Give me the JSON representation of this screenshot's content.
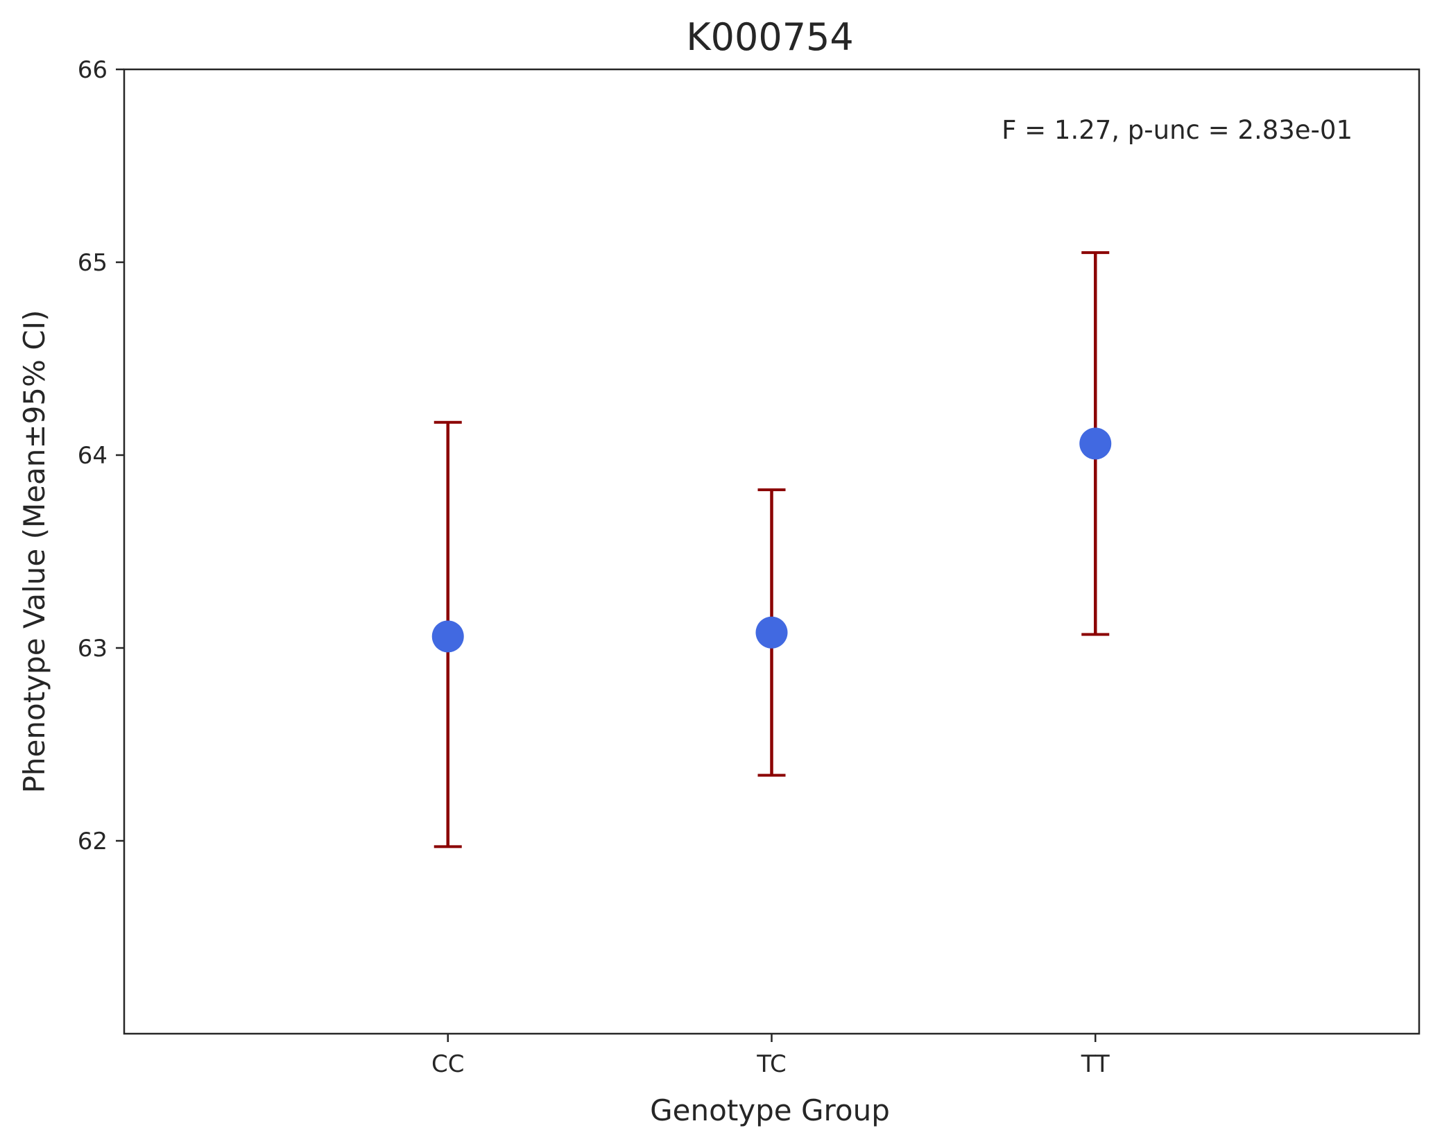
{
  "chart_data": {
    "type": "scatter",
    "title": "K000754",
    "xlabel": "Genotype Group",
    "ylabel": "Phenotype Value (Mean±95% CI)",
    "categories": [
      "CC",
      "TC",
      "TT"
    ],
    "series": [
      {
        "means": [
          63.06,
          63.08,
          64.06
        ],
        "ci_low": [
          61.97,
          62.34,
          63.07
        ],
        "ci_high": [
          64.17,
          63.82,
          65.05
        ]
      }
    ],
    "ylim": [
      61.0,
      66.0
    ],
    "yticks": [
      "62",
      "63",
      "64",
      "65",
      "66"
    ],
    "annotation": "F = 1.27, p-unc = 2.83e-01",
    "annotation_position": "top-right",
    "grid": false,
    "marker_color": "#4169e1",
    "errorbar_color": "#8b0000",
    "axis_color": "#262626"
  }
}
